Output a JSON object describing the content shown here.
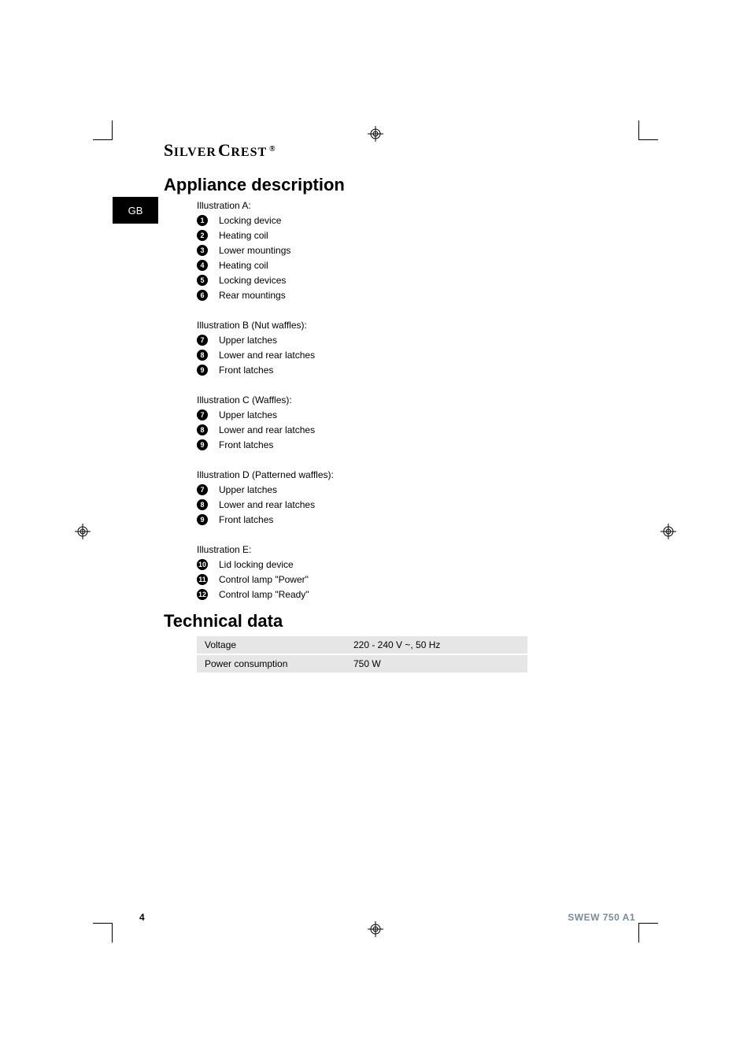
{
  "brand": {
    "part1_initial": "S",
    "part1_rest": "ILVER",
    "part2_initial": "C",
    "part2_rest": "REST",
    "reg": "®"
  },
  "badge": "GB",
  "sections": {
    "appliance": {
      "title": "Appliance description",
      "groups": [
        {
          "heading": "Illustration A:",
          "items": [
            {
              "num": "1",
              "label": "Locking device"
            },
            {
              "num": "2",
              "label": "Heating coil"
            },
            {
              "num": "3",
              "label": "Lower mountings"
            },
            {
              "num": "4",
              "label": "Heating coil"
            },
            {
              "num": "5",
              "label": "Locking devices"
            },
            {
              "num": "6",
              "label": "Rear mountings"
            }
          ]
        },
        {
          "heading": "Illustration B (Nut waffles):",
          "items": [
            {
              "num": "7",
              "label": "Upper latches"
            },
            {
              "num": "8",
              "label": "Lower and rear latches"
            },
            {
              "num": "9",
              "label": "Front latches"
            }
          ]
        },
        {
          "heading": "Illustration C (Waffles):",
          "items": [
            {
              "num": "7",
              "label": "Upper latches"
            },
            {
              "num": "8",
              "label": "Lower and rear latches"
            },
            {
              "num": "9",
              "label": "Front latches"
            }
          ]
        },
        {
          "heading": "Illustration D (Patterned waffles):",
          "items": [
            {
              "num": "7",
              "label": "Upper latches"
            },
            {
              "num": "8",
              "label": "Lower and rear latches"
            },
            {
              "num": "9",
              "label": "Front latches"
            }
          ]
        },
        {
          "heading": "Illustration E:",
          "items": [
            {
              "num": "10",
              "label": "Lid locking device"
            },
            {
              "num": "11",
              "label": "Control lamp \"Power\""
            },
            {
              "num": "12",
              "label": "Control lamp \"Ready\""
            }
          ]
        }
      ]
    },
    "technical": {
      "title": "Technical data",
      "rows": [
        {
          "label": "Voltage",
          "value": "220 - 240 V ~, 50 Hz"
        },
        {
          "label": "Power consumption",
          "value": "750 W"
        }
      ]
    }
  },
  "footer": {
    "page": "4",
    "model": "SWEW 750 A1"
  },
  "style": {
    "badge_bg": "#000000",
    "badge_fg": "#ffffff",
    "table_bg": "#e6e6e6",
    "model_color": "#7a8a99",
    "body_fontsize": 12,
    "h1_fontsize": 22
  }
}
